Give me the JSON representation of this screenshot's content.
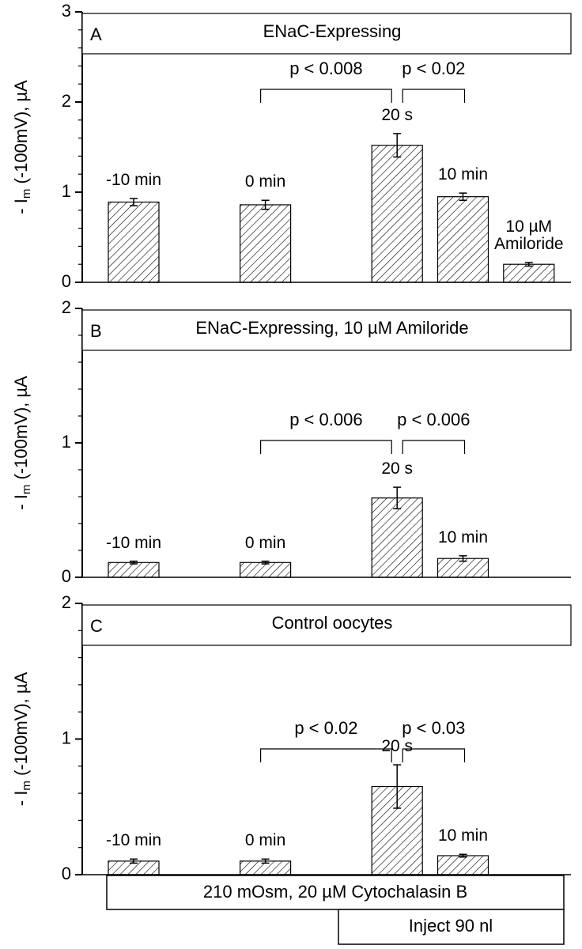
{
  "chart_data": [
    {
      "type": "bar",
      "panel": "A",
      "title": "ENaC-Expressing",
      "ylabel": {
        "prefix": "- I",
        "subscript": "m",
        "suffix": " (-100mV), µA"
      },
      "categories": [
        "-10 min",
        null,
        "0 min",
        null,
        "20 s",
        "10 min",
        "10 µM Amiloride"
      ],
      "values": [
        0.89,
        null,
        0.86,
        null,
        1.52,
        0.95,
        0.2
      ],
      "errors": [
        0.04,
        null,
        0.05,
        null,
        0.13,
        0.04,
        0.02
      ],
      "annotations": [
        "p < 0.008",
        "p < 0.02"
      ],
      "color": "#000000",
      "ylim": [
        0,
        3
      ],
      "yticks": [
        0,
        1,
        2,
        3
      ],
      "minor_yticks": [
        0.2,
        0.4,
        0.6,
        0.8,
        1.2,
        1.4,
        1.6,
        1.8,
        2.2,
        2.4,
        2.6,
        2.8
      ]
    },
    {
      "type": "bar",
      "panel": "B",
      "title": "ENaC-Expressing, 10 µM Amiloride",
      "ylabel": {
        "prefix": "- I",
        "subscript": "m",
        "suffix": " (-100mV), µA"
      },
      "categories": [
        "-10 min",
        null,
        "0 min",
        null,
        "20 s",
        "10 min",
        null
      ],
      "values": [
        0.11,
        null,
        0.11,
        null,
        0.59,
        0.14,
        null
      ],
      "errors": [
        0.01,
        null,
        0.01,
        null,
        0.08,
        0.02,
        null
      ],
      "annotations": [
        "p < 0.006",
        "p < 0.006"
      ],
      "color": "#000000",
      "ylim": [
        0,
        2
      ],
      "yticks": [
        0,
        1,
        2
      ],
      "minor_yticks": [
        0.2,
        0.4,
        0.6,
        0.8,
        1.2,
        1.4,
        1.6,
        1.8
      ]
    },
    {
      "type": "bar",
      "panel": "C",
      "title": "Control oocytes",
      "ylabel": {
        "prefix": "- I",
        "subscript": "m",
        "suffix": " (-100mV), µA"
      },
      "categories": [
        "-10 min",
        null,
        "0 min",
        null,
        "20 s",
        "10 min",
        null
      ],
      "values": [
        0.1,
        null,
        0.1,
        null,
        0.65,
        0.14,
        null
      ],
      "errors": [
        0.015,
        null,
        0.015,
        null,
        0.16,
        0.01,
        null
      ],
      "annotations": [
        "p < 0.02",
        "p < 0.03"
      ],
      "color": "#000000",
      "ylim": [
        0,
        2
      ],
      "yticks": [
        0,
        1,
        2
      ],
      "minor_yticks": [
        0.2,
        0.4,
        0.6,
        0.8,
        1.2,
        1.4,
        1.6,
        1.8
      ]
    }
  ],
  "conditions": [
    "210 mOsm, 20 µM Cytochalasin B",
    "Inject 90 nl"
  ]
}
